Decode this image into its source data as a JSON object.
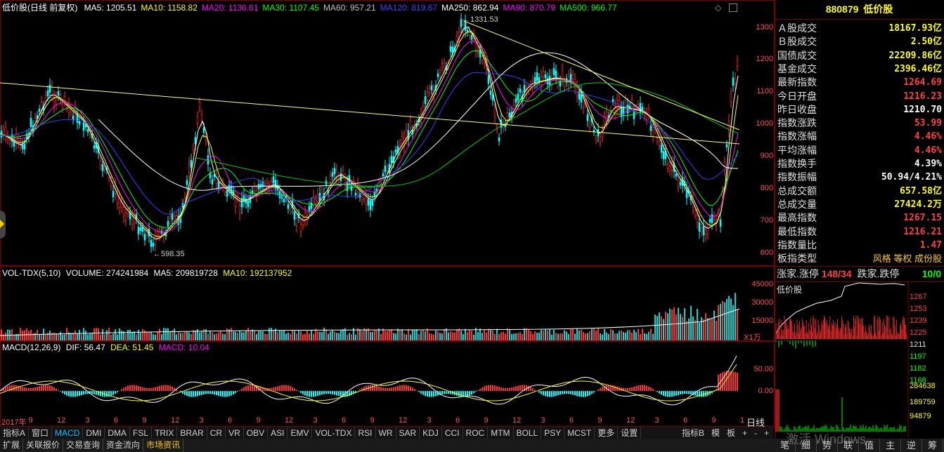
{
  "header": {
    "title": "低价股(日线 前复权)",
    "ma": [
      {
        "label": "MA5: 1205.51",
        "color": "#ffffff"
      },
      {
        "label": "MA10: 1158.82",
        "color": "#ffff00"
      },
      {
        "label": "MA20: 1136.61",
        "color": "#ff00ff"
      },
      {
        "label": "MA30: 1107.45",
        "color": "#00ff00"
      },
      {
        "label": "MA60: 957.21",
        "color": "#c0c0c0"
      },
      {
        "label": "MA120: 819.67",
        "color": "#4040ff"
      },
      {
        "label": "MA250: 862.94",
        "color": "#ffffff"
      },
      {
        "label": "MA90: 870.79",
        "color": "#ff00ff"
      },
      {
        "label": "MA500: 966.77",
        "color": "#00ff00"
      }
    ]
  },
  "price_axis": [
    "1300",
    "1200",
    "1100",
    "1000",
    "900",
    "800",
    "700",
    "600"
  ],
  "annotations": {
    "high": "1331.53",
    "low": "598.35"
  },
  "volume": {
    "header": "VOL-TDX(5,10)",
    "volume": "VOLUME: 274241984",
    "ma5": "MA5: 209819728",
    "ma10": "MA10: 192137952",
    "axis": [
      "45000",
      "30000",
      "15000"
    ],
    "unit": "X1万"
  },
  "macd": {
    "header": "MACD(12,26,9)",
    "dif": "DIF: 56.47",
    "dea": "DEA: 51.45",
    "macd": "MACD: 10.04",
    "axis": [
      "50.00",
      "0.00"
    ]
  },
  "date_axis": [
    "2017年",
    "9",
    "12",
    "3",
    "6",
    "9",
    "12",
    "3",
    "6",
    "9",
    "12",
    "3",
    "6",
    "9",
    "12",
    "3",
    "6",
    "9",
    "12",
    "3",
    "6",
    "9",
    "12",
    "3",
    "6",
    "9",
    "1"
  ],
  "indicator_bar": [
    "指标A",
    "窗口",
    "MACD",
    "DMI",
    "DMA",
    "FSL",
    "TRIX",
    "BRAR",
    "CR",
    "VR",
    "OBV",
    "ASI",
    "EMV",
    "VOL-TDX",
    "RSI",
    "WR",
    "SAR",
    "KDJ",
    "CCI",
    "ROC",
    "MTM",
    "BOLL",
    "PSY",
    "MCST",
    "更多",
    "设置"
  ],
  "indicator_bar_right": [
    "指标B",
    "模",
    "板",
    "+",
    "-",
    "+"
  ],
  "period": "日线",
  "bottom_bar": [
    "扩展",
    "关联报价",
    "交易查询",
    "资金流向",
    "市场资讯"
  ],
  "watermark": "激活 Windows",
  "right_panel": {
    "code": "880879",
    "name": "低价股",
    "rows": [
      {
        "label": "Ａ股成交",
        "value": "18167.93亿",
        "color": "#ffff00"
      },
      {
        "label": "Ｂ股成交",
        "value": "2.50亿",
        "color": "#ffff00"
      },
      {
        "label": "国债成交",
        "value": "22209.86亿",
        "color": "#ffff00"
      },
      {
        "label": "基金成交",
        "value": "2396.46亿",
        "color": "#ffff00"
      },
      {
        "label": "最新指数",
        "value": "1264.69",
        "color": "#ff4040"
      },
      {
        "label": "今日开盘",
        "value": "1216.23",
        "color": "#ff4040"
      },
      {
        "label": "昨日收盘",
        "value": "1210.70",
        "color": "#ffffff"
      },
      {
        "label": "指数涨跌",
        "value": "53.99",
        "color": "#ff4040"
      },
      {
        "label": "指数涨幅",
        "value": "4.46%",
        "color": "#ff4040"
      },
      {
        "label": "平均涨幅",
        "value": "4.46%",
        "color": "#ff4040"
      },
      {
        "label": "指数换手",
        "value": "4.39%",
        "color": "#ffffff"
      },
      {
        "label": "指数振幅",
        "value": "50.94/4.21%",
        "color": "#ffffff"
      },
      {
        "label": "总成交额",
        "value": "657.58亿",
        "color": "#ffff00"
      },
      {
        "label": "总成交量",
        "value": "27424.2万",
        "color": "#ffff00"
      },
      {
        "label": "最高指数",
        "value": "1267.15",
        "color": "#ff4040"
      },
      {
        "label": "最低指数",
        "value": "1216.21",
        "color": "#ff4040"
      },
      {
        "label": "指数量比",
        "value": "1.47",
        "color": "#ff4040"
      }
    ],
    "type_label": "板指类型",
    "type_value": "风格 等权 成份股",
    "limit_up_label": "涨家.涨停",
    "limit_up_value": "148/34",
    "limit_down_label": "跌家.跌停",
    "limit_down_value": "10/0",
    "mini_title": "低价股",
    "mini_axis": [
      "1267",
      "1253",
      "1239",
      "1225",
      "1211",
      "1197",
      "1182",
      "1168"
    ],
    "mini_vol_axis": [
      "284638",
      "189759",
      "94879"
    ],
    "tabs": [
      "笔",
      "细",
      "势",
      "联",
      "值",
      "主",
      "逆",
      "筹"
    ]
  }
}
